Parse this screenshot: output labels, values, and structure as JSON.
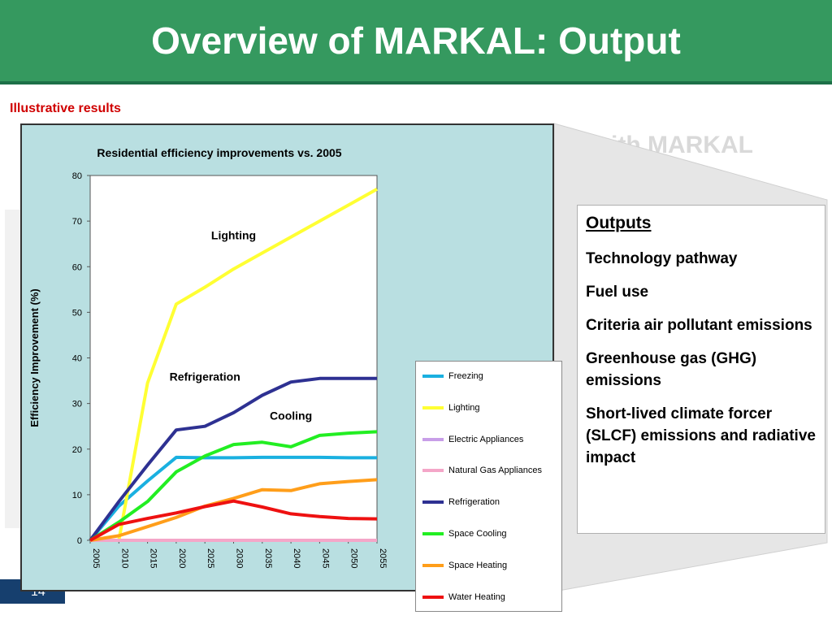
{
  "slide": {
    "title": "Overview of MARKAL: Output",
    "subtitle": "Illustrative results",
    "background_heading": "ith MARKAL",
    "page_number": "14"
  },
  "outputs": {
    "heading": "Outputs",
    "items": [
      "Technology pathway",
      "Fuel use",
      "Criteria air pollutant emissions",
      "Greenhouse gas  (GHG) emissions",
      "Short-lived climate forcer (SLCF) emissions and radiative impact"
    ]
  },
  "colors": {
    "header": "#35995f",
    "chart_background": "#b9dfe1",
    "subtitle": "#d00000"
  },
  "chart_data": {
    "type": "line",
    "title": "Residential efficiency improvements vs. 2005",
    "ylabel": "Efficiency Improvement (%)",
    "xlabel": "",
    "ylim": [
      0,
      80
    ],
    "yticks": [
      0,
      10,
      20,
      30,
      40,
      50,
      60,
      70,
      80
    ],
    "x": [
      "2005",
      "2010",
      "2015",
      "2020",
      "2025",
      "2030",
      "2035",
      "2040",
      "2045",
      "2050",
      "2055"
    ],
    "grid": false,
    "legend_position": "right",
    "annotations": [
      {
        "text": "Lighting",
        "x": "2030",
        "y": 66
      },
      {
        "text": "Refrigeration",
        "x": "2025",
        "y": 35
      },
      {
        "text": "Cooling",
        "x": "2040",
        "y": 26.5
      }
    ],
    "series": [
      {
        "name": "Freezing",
        "color": "#1ab0e0",
        "values": [
          0,
          7.5,
          13,
          18.2,
          18.1,
          18.1,
          18.2,
          18.2,
          18.2,
          18.1,
          18.1
        ]
      },
      {
        "name": "Lighting",
        "color": "#ffff33",
        "values": [
          0,
          0,
          34.5,
          51.8,
          55.5,
          59.5,
          63,
          66.5,
          70,
          73.5,
          77
        ]
      },
      {
        "name": "Electric Appliances",
        "color": "#c89ee8",
        "values": [
          0,
          0,
          0,
          0,
          0,
          0,
          0,
          0,
          0,
          0,
          0
        ]
      },
      {
        "name": "Natural Gas Appliances",
        "color": "#f4a6c8",
        "values": [
          0,
          0,
          0,
          0,
          0,
          0,
          0,
          0,
          0,
          0,
          0
        ]
      },
      {
        "name": "Refrigeration",
        "color": "#2e3192",
        "values": [
          0,
          8.5,
          16.5,
          24.2,
          25,
          28,
          31.8,
          34.7,
          35.5,
          35.5,
          35.5
        ]
      },
      {
        "name": "Space Cooling",
        "color": "#22ee22",
        "values": [
          0,
          4,
          8.5,
          15,
          18.5,
          21,
          21.5,
          20.5,
          23,
          23.5,
          23.8
        ]
      },
      {
        "name": "Space Heating",
        "color": "#ff9e1a",
        "values": [
          0,
          1,
          3,
          5,
          7.5,
          9.2,
          11.1,
          10.9,
          12.4,
          12.9,
          13.3
        ]
      },
      {
        "name": "Water Heating",
        "color": "#ee1111",
        "values": [
          0,
          3.5,
          4.8,
          6,
          7.4,
          8.6,
          7.3,
          5.8,
          5.2,
          4.8,
          4.7
        ]
      }
    ]
  }
}
